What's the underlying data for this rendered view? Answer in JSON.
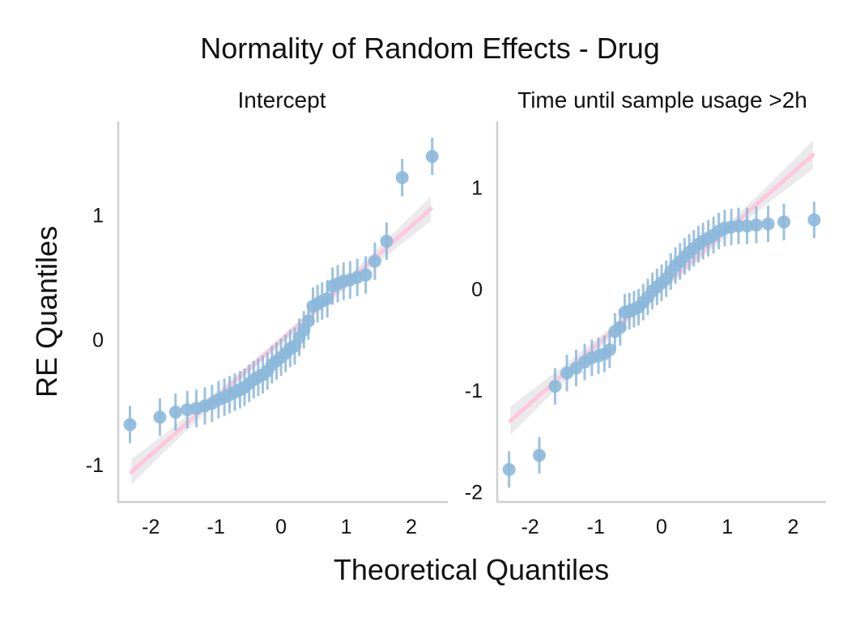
{
  "chart_data": {
    "type": "scatter",
    "title": "Normality of Random Effects - Drug",
    "xlabel": "Theoretical Quantiles",
    "ylabel": "RE Quantiles",
    "colors": {
      "points": "#8cb8da",
      "reference_line": "#ffc6de",
      "band": "#e6e6e6"
    },
    "grid": false,
    "panels": [
      {
        "title": "Intercept",
        "xlim": [
          -2.5,
          2.56
        ],
        "ylim": [
          -1.3,
          1.75
        ],
        "xticks": [
          "-2",
          "-1",
          "0",
          "1",
          "2"
        ],
        "xtick_values": [
          -2,
          -1,
          0,
          1,
          2
        ],
        "yticks": [
          "-1",
          "0",
          "1"
        ],
        "ytick_values": [
          -1,
          0,
          1
        ],
        "reference_line": {
          "x": [
            -2.3,
            2.3
          ],
          "y": [
            -1.06,
            1.05
          ]
        },
        "band_halfwidth": [
          0.1,
          0.03,
          0.1
        ],
        "points": [
          {
            "x": -2.32,
            "y": -0.68
          },
          {
            "x": -1.86,
            "y": -0.62
          },
          {
            "x": -1.62,
            "y": -0.58
          },
          {
            "x": -1.44,
            "y": -0.56
          },
          {
            "x": -1.3,
            "y": -0.55
          },
          {
            "x": -1.17,
            "y": -0.53
          },
          {
            "x": -1.06,
            "y": -0.51
          },
          {
            "x": -0.96,
            "y": -0.48
          },
          {
            "x": -0.87,
            "y": -0.46
          },
          {
            "x": -0.79,
            "y": -0.44
          },
          {
            "x": -0.71,
            "y": -0.42
          },
          {
            "x": -0.63,
            "y": -0.4
          },
          {
            "x": -0.56,
            "y": -0.38
          },
          {
            "x": -0.49,
            "y": -0.35
          },
          {
            "x": -0.42,
            "y": -0.32
          },
          {
            "x": -0.35,
            "y": -0.3
          },
          {
            "x": -0.28,
            "y": -0.28
          },
          {
            "x": -0.21,
            "y": -0.25
          },
          {
            "x": -0.14,
            "y": -0.2
          },
          {
            "x": -0.07,
            "y": -0.17
          },
          {
            "x": 0.0,
            "y": -0.14
          },
          {
            "x": 0.07,
            "y": -0.11
          },
          {
            "x": 0.14,
            "y": -0.07
          },
          {
            "x": 0.21,
            "y": -0.05
          },
          {
            "x": 0.28,
            "y": 0.02
          },
          {
            "x": 0.35,
            "y": 0.08
          },
          {
            "x": 0.42,
            "y": 0.15
          },
          {
            "x": 0.49,
            "y": 0.27
          },
          {
            "x": 0.56,
            "y": 0.29
          },
          {
            "x": 0.63,
            "y": 0.31
          },
          {
            "x": 0.71,
            "y": 0.33
          },
          {
            "x": 0.79,
            "y": 0.43
          },
          {
            "x": 0.87,
            "y": 0.45
          },
          {
            "x": 0.96,
            "y": 0.47
          },
          {
            "x": 1.06,
            "y": 0.48
          },
          {
            "x": 1.17,
            "y": 0.5
          },
          {
            "x": 1.3,
            "y": 0.52
          },
          {
            "x": 1.44,
            "y": 0.63
          },
          {
            "x": 1.62,
            "y": 0.79
          },
          {
            "x": 1.86,
            "y": 1.3
          },
          {
            "x": 2.32,
            "y": 1.47
          }
        ],
        "error_halfwidth": 0.15
      },
      {
        "title": "Time until sample usage >2h",
        "xlim": [
          -2.5,
          2.5
        ],
        "ylim": [
          -2.1,
          1.65
        ],
        "xticks": [
          "-2",
          "-1",
          "0",
          "1",
          "2"
        ],
        "xtick_values": [
          -2,
          -1,
          0,
          1,
          2
        ],
        "yticks": [
          "-2",
          "-1",
          "0",
          "1"
        ],
        "ytick_values": [
          -2,
          -1,
          0,
          1
        ],
        "reference_line": {
          "x": [
            -2.3,
            2.3
          ],
          "y": [
            -1.3,
            1.32
          ]
        },
        "band_halfwidth": [
          0.14,
          0.04,
          0.14
        ],
        "points": [
          {
            "x": -2.32,
            "y": -1.78
          },
          {
            "x": -1.86,
            "y": -1.64
          },
          {
            "x": -1.62,
            "y": -0.96
          },
          {
            "x": -1.44,
            "y": -0.83
          },
          {
            "x": -1.3,
            "y": -0.78
          },
          {
            "x": -1.17,
            "y": -0.72
          },
          {
            "x": -1.06,
            "y": -0.68
          },
          {
            "x": -0.96,
            "y": -0.66
          },
          {
            "x": -0.87,
            "y": -0.64
          },
          {
            "x": -0.79,
            "y": -0.6
          },
          {
            "x": -0.71,
            "y": -0.42
          },
          {
            "x": -0.63,
            "y": -0.38
          },
          {
            "x": -0.56,
            "y": -0.23
          },
          {
            "x": -0.49,
            "y": -0.22
          },
          {
            "x": -0.42,
            "y": -0.2
          },
          {
            "x": -0.35,
            "y": -0.18
          },
          {
            "x": -0.28,
            "y": -0.13
          },
          {
            "x": -0.21,
            "y": -0.08
          },
          {
            "x": -0.14,
            "y": -0.02
          },
          {
            "x": -0.07,
            "y": 0.02
          },
          {
            "x": 0.0,
            "y": 0.06
          },
          {
            "x": 0.07,
            "y": 0.1
          },
          {
            "x": 0.14,
            "y": 0.17
          },
          {
            "x": 0.21,
            "y": 0.23
          },
          {
            "x": 0.28,
            "y": 0.27
          },
          {
            "x": 0.35,
            "y": 0.32
          },
          {
            "x": 0.42,
            "y": 0.36
          },
          {
            "x": 0.49,
            "y": 0.4
          },
          {
            "x": 0.56,
            "y": 0.44
          },
          {
            "x": 0.63,
            "y": 0.47
          },
          {
            "x": 0.71,
            "y": 0.5
          },
          {
            "x": 0.79,
            "y": 0.53
          },
          {
            "x": 0.87,
            "y": 0.57
          },
          {
            "x": 0.96,
            "y": 0.6
          },
          {
            "x": 1.06,
            "y": 0.61
          },
          {
            "x": 1.17,
            "y": 0.62
          },
          {
            "x": 1.3,
            "y": 0.62
          },
          {
            "x": 1.44,
            "y": 0.63
          },
          {
            "x": 1.62,
            "y": 0.64
          },
          {
            "x": 1.86,
            "y": 0.66
          },
          {
            "x": 2.32,
            "y": 0.68
          }
        ],
        "error_halfwidth": 0.18
      }
    ]
  }
}
